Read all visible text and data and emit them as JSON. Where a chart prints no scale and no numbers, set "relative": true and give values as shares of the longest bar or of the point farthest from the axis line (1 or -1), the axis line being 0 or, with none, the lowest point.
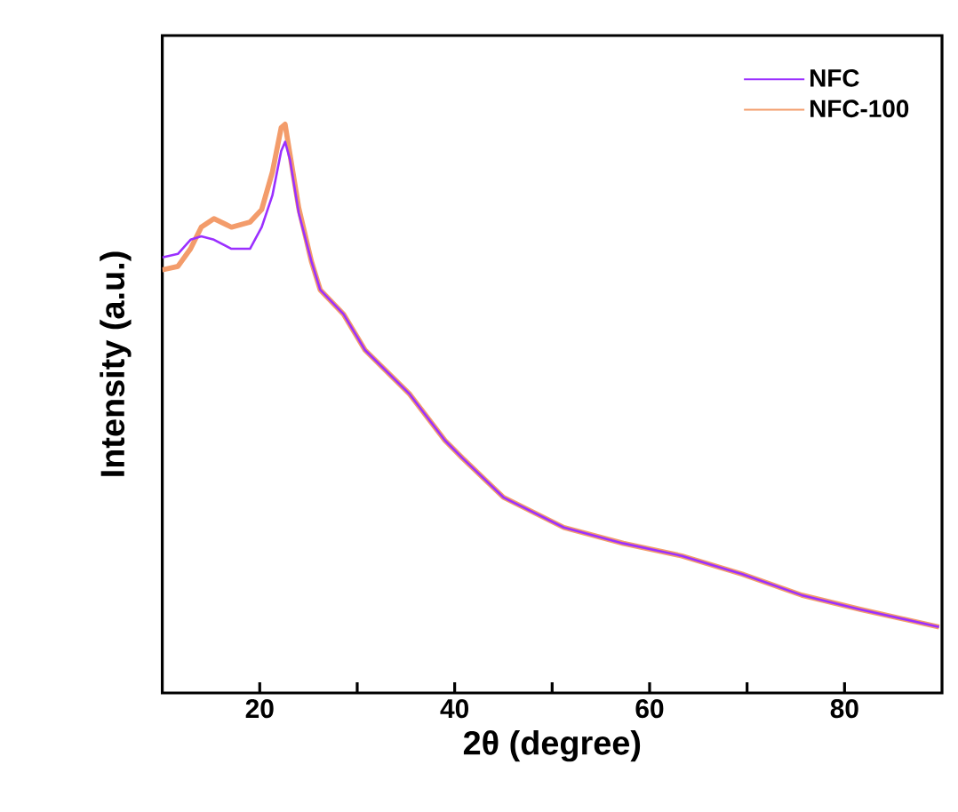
{
  "chart_data": {
    "type": "line",
    "xlabel": "2θ (degree)",
    "ylabel": "Intensity (a.u.)",
    "relative": true,
    "xlim": [
      10,
      90
    ],
    "xticks": [
      20,
      {
        "value": 30,
        "label": null
      },
      40,
      {
        "value": 50,
        "label": null
      },
      60,
      {
        "value": 70,
        "label": null
      },
      80
    ],
    "legend": "top right",
    "grid": false,
    "marker": "none",
    "line_style": "solid",
    "series": [
      {
        "name": "NFC",
        "color": "#9b30ff",
        "x": [
          10.0,
          11.6,
          12.9,
          14.0,
          15.3,
          17.1,
          19.0,
          20.2,
          21.3,
          22.2,
          22.6,
          23.1,
          24.0,
          25.3,
          26.2,
          28.6,
          30.8,
          35.4,
          39.0,
          40.8,
          45.0,
          51.2,
          57.3,
          63.3,
          69.5,
          75.6,
          81.6,
          89.7
        ],
        "values": [
          0.766,
          0.772,
          0.797,
          0.803,
          0.797,
          0.781,
          0.781,
          0.819,
          0.875,
          0.953,
          0.969,
          0.938,
          0.844,
          0.759,
          0.709,
          0.666,
          0.603,
          0.525,
          0.444,
          0.413,
          0.344,
          0.291,
          0.263,
          0.241,
          0.209,
          0.172,
          0.147,
          0.116
        ]
      },
      {
        "name": "NFC-100",
        "color": "#f39c6b",
        "x": [
          10.0,
          11.6,
          12.9,
          14.0,
          15.3,
          17.1,
          19.0,
          20.2,
          21.3,
          22.2,
          22.6,
          23.1,
          24.0,
          25.3,
          26.2,
          28.6,
          30.8,
          35.4,
          39.0,
          40.8,
          45.0,
          51.2,
          57.3,
          63.3,
          69.5,
          75.6,
          81.6,
          89.7
        ],
        "values": [
          0.744,
          0.75,
          0.781,
          0.819,
          0.834,
          0.819,
          0.828,
          0.85,
          0.916,
          0.994,
          1.0,
          0.947,
          0.853,
          0.759,
          0.709,
          0.666,
          0.603,
          0.525,
          0.444,
          0.413,
          0.344,
          0.291,
          0.263,
          0.241,
          0.209,
          0.172,
          0.147,
          0.116
        ]
      }
    ]
  }
}
